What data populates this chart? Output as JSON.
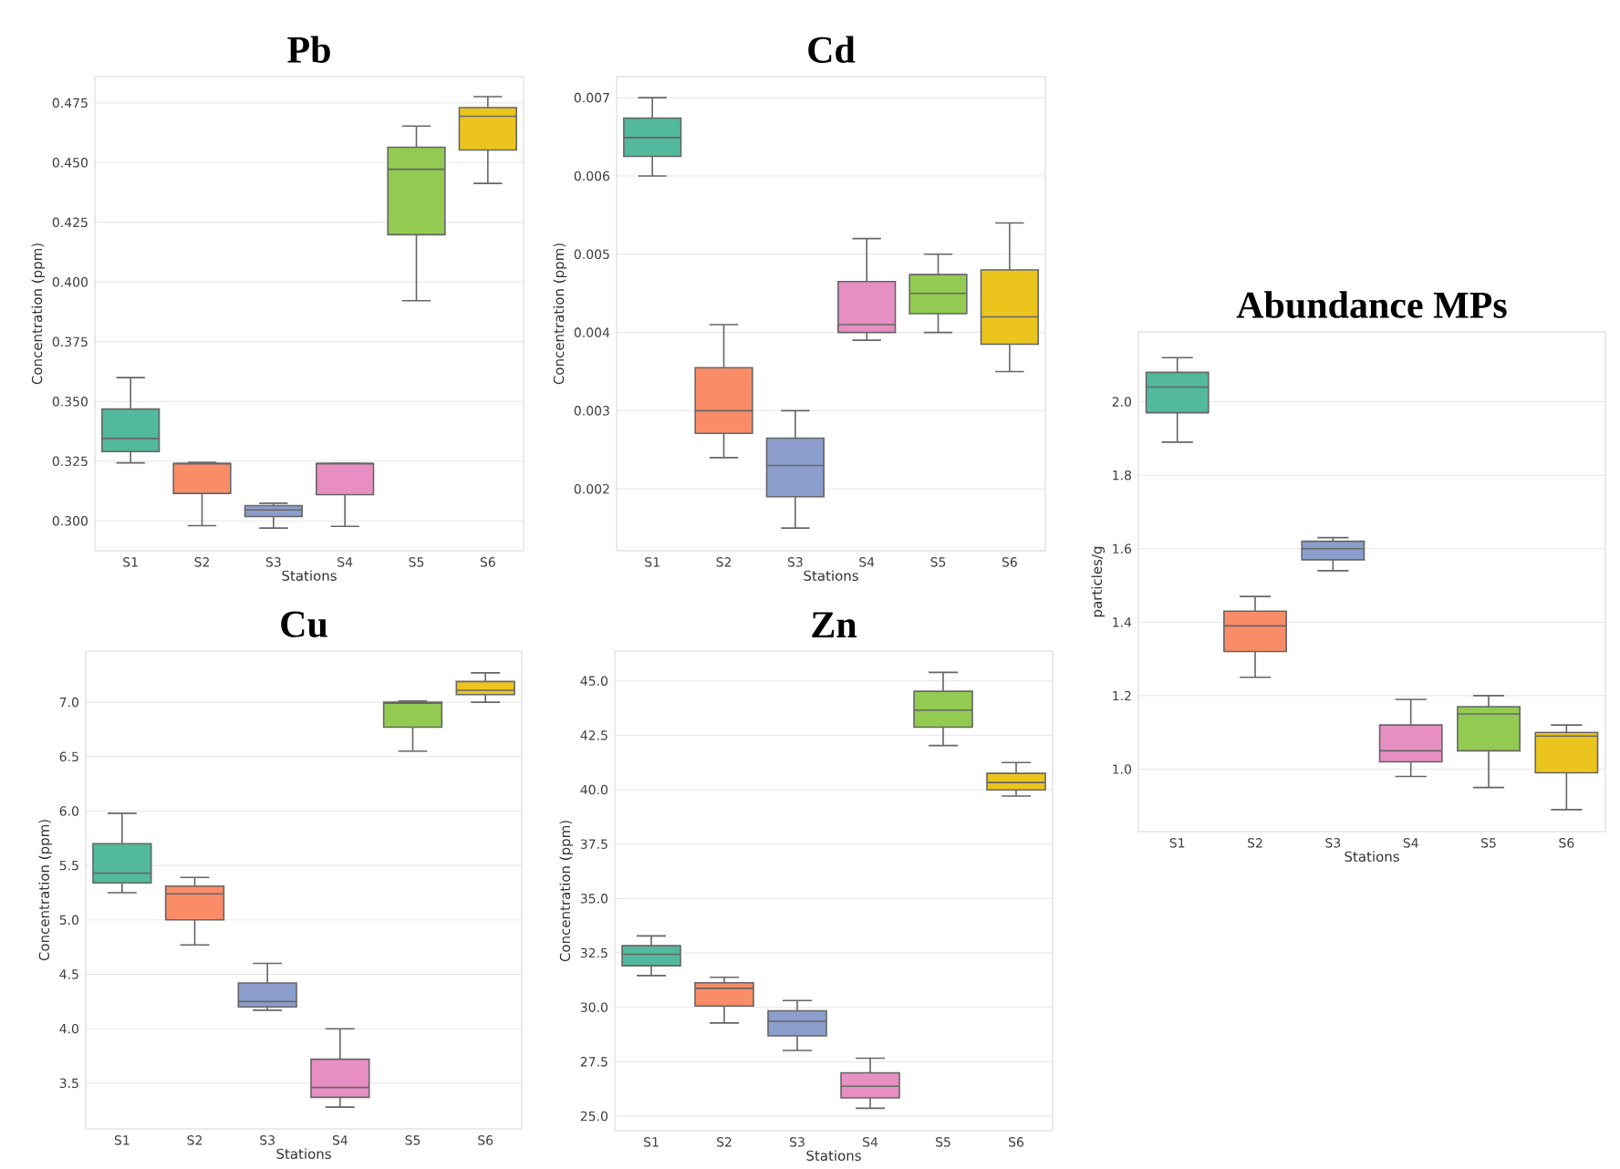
{
  "chart_data": [
    {
      "type": "box",
      "title": "Pb",
      "xlabel": "Stations",
      "ylabel": "Concentration (ppm)",
      "categories": [
        "S1",
        "S2",
        "S3",
        "S4",
        "S5",
        "S6"
      ],
      "colors": [
        "#52b99c",
        "#fa8c68",
        "#8c9ecb",
        "#e78fc3",
        "#93cb52",
        "#ecc41e"
      ],
      "ylim": [
        0.2875,
        0.486
      ],
      "yticks": [
        {
          "value": 0.3,
          "label": "0.300"
        },
        {
          "value": 0.325,
          "label": "0.325"
        },
        {
          "value": 0.35,
          "label": "0.350"
        },
        {
          "value": 0.375,
          "label": "0.375"
        },
        {
          "value": 0.4,
          "label": "0.400"
        },
        {
          "value": 0.425,
          "label": "0.425"
        },
        {
          "value": 0.45,
          "label": "0.450"
        },
        {
          "value": 0.475,
          "label": "0.475"
        }
      ],
      "grid": "y",
      "boxes": [
        {
          "low": 0.3243,
          "q1": 0.329,
          "median": 0.3345,
          "q3": 0.3468,
          "high": 0.36
        },
        {
          "low": 0.298,
          "q1": 0.3115,
          "median": 0.324,
          "q3": 0.324,
          "high": 0.3245
        },
        {
          "low": 0.297,
          "q1": 0.3018,
          "median": 0.3046,
          "q3": 0.3064,
          "high": 0.3074
        },
        {
          "low": 0.2977,
          "q1": 0.311,
          "median": 0.324,
          "q3": 0.324,
          "high": 0.324
        },
        {
          "low": 0.3922,
          "q1": 0.4198,
          "median": 0.4472,
          "q3": 0.4564,
          "high": 0.4653
        },
        {
          "low": 0.4413,
          "q1": 0.4553,
          "median": 0.4694,
          "q3": 0.473,
          "high": 0.4776
        }
      ]
    },
    {
      "type": "box",
      "title": "Cd",
      "xlabel": "Stations",
      "ylabel": "Concentration (ppm)",
      "categories": [
        "S1",
        "S2",
        "S3",
        "S4",
        "S5",
        "S6"
      ],
      "colors": [
        "#52b99c",
        "#fa8c68",
        "#8c9ecb",
        "#e78fc3",
        "#93cb52",
        "#ecc41e"
      ],
      "ylim": [
        0.00121,
        0.00727
      ],
      "yticks": [
        {
          "value": 0.002,
          "label": "0.002"
        },
        {
          "value": 0.003,
          "label": "0.003"
        },
        {
          "value": 0.004,
          "label": "0.004"
        },
        {
          "value": 0.005,
          "label": "0.005"
        },
        {
          "value": 0.006,
          "label": "0.006"
        },
        {
          "value": 0.007,
          "label": "0.007"
        }
      ],
      "grid": "y",
      "boxes": [
        {
          "low": 0.006,
          "q1": 0.00625,
          "median": 0.00649,
          "q3": 0.00674,
          "high": 0.007
        },
        {
          "low": 0.0024,
          "q1": 0.00271,
          "median": 0.003,
          "q3": 0.00355,
          "high": 0.0041
        },
        {
          "low": 0.0015,
          "q1": 0.0019,
          "median": 0.0023,
          "q3": 0.00265,
          "high": 0.003
        },
        {
          "low": 0.0039,
          "q1": 0.004,
          "median": 0.0041,
          "q3": 0.00465,
          "high": 0.0052
        },
        {
          "low": 0.004,
          "q1": 0.00424,
          "median": 0.0045,
          "q3": 0.00474,
          "high": 0.005
        },
        {
          "low": 0.0035,
          "q1": 0.00385,
          "median": 0.0042,
          "q3": 0.0048,
          "high": 0.0054
        }
      ]
    },
    {
      "type": "box",
      "title": "Abundance MPs",
      "xlabel": "Stations",
      "ylabel": "particles/g",
      "categories": [
        "S1",
        "S2",
        "S3",
        "S4",
        "S5",
        "S6"
      ],
      "colors": [
        "#52b99c",
        "#fa8c68",
        "#8c9ecb",
        "#e78fc3",
        "#93cb52",
        "#ecc41e"
      ],
      "ylim": [
        0.83,
        2.19
      ],
      "yticks": [
        {
          "value": 1.0,
          "label": "1.0"
        },
        {
          "value": 1.2,
          "label": "1.2"
        },
        {
          "value": 1.4,
          "label": "1.4"
        },
        {
          "value": 1.6,
          "label": "1.6"
        },
        {
          "value": 1.8,
          "label": "1.8"
        },
        {
          "value": 2.0,
          "label": "2.0"
        }
      ],
      "grid": "y",
      "boxes": [
        {
          "low": 1.89,
          "q1": 1.97,
          "median": 2.04,
          "q3": 2.08,
          "high": 2.12
        },
        {
          "low": 1.25,
          "q1": 1.32,
          "median": 1.39,
          "q3": 1.43,
          "high": 1.47
        },
        {
          "low": 1.54,
          "q1": 1.57,
          "median": 1.6,
          "q3": 1.62,
          "high": 1.63
        },
        {
          "low": 0.98,
          "q1": 1.02,
          "median": 1.05,
          "q3": 1.12,
          "high": 1.19
        },
        {
          "low": 0.95,
          "q1": 1.05,
          "median": 1.15,
          "q3": 1.17,
          "high": 1.2
        },
        {
          "low": 0.89,
          "q1": 0.99,
          "median": 1.09,
          "q3": 1.1,
          "high": 1.12
        }
      ]
    },
    {
      "type": "box",
      "title": "Cu",
      "xlabel": "Stations",
      "ylabel": "Concentration (ppm)",
      "categories": [
        "S1",
        "S2",
        "S3",
        "S4",
        "S5",
        "S6"
      ],
      "colors": [
        "#52b99c",
        "#fa8c68",
        "#8c9ecb",
        "#e78fc3",
        "#93cb52",
        "#ecc41e"
      ],
      "ylim": [
        3.08,
        7.47
      ],
      "yticks": [
        {
          "value": 3.5,
          "label": "3.5"
        },
        {
          "value": 4.0,
          "label": "4.0"
        },
        {
          "value": 4.5,
          "label": "4.5"
        },
        {
          "value": 5.0,
          "label": "5.0"
        },
        {
          "value": 5.5,
          "label": "5.5"
        },
        {
          "value": 6.0,
          "label": "6.0"
        },
        {
          "value": 6.5,
          "label": "6.5"
        },
        {
          "value": 7.0,
          "label": "7.0"
        }
      ],
      "grid": "y",
      "boxes": [
        {
          "low": 5.25,
          "q1": 5.34,
          "median": 5.43,
          "q3": 5.7,
          "high": 5.98
        },
        {
          "low": 4.77,
          "q1": 5.0,
          "median": 5.24,
          "q3": 5.31,
          "high": 5.39
        },
        {
          "low": 4.17,
          "q1": 4.2,
          "median": 4.25,
          "q3": 4.42,
          "high": 4.6
        },
        {
          "low": 3.28,
          "q1": 3.37,
          "median": 3.46,
          "q3": 3.72,
          "high": 4.0
        },
        {
          "low": 6.55,
          "q1": 6.77,
          "median": 6.99,
          "q3": 7.0,
          "high": 7.01
        },
        {
          "low": 7.0,
          "q1": 7.07,
          "median": 7.11,
          "q3": 7.19,
          "high": 7.27
        }
      ]
    },
    {
      "type": "box",
      "title": "Zn",
      "xlabel": "Stations",
      "ylabel": "Concentration (ppm)",
      "categories": [
        "S1",
        "S2",
        "S3",
        "S4",
        "S5",
        "S6"
      ],
      "colors": [
        "#52b99c",
        "#fa8c68",
        "#8c9ecb",
        "#e78fc3",
        "#93cb52",
        "#ecc41e"
      ],
      "ylim": [
        24.33,
        46.37
      ],
      "yticks": [
        {
          "value": 25.0,
          "label": "25.0"
        },
        {
          "value": 27.5,
          "label": "27.5"
        },
        {
          "value": 30.0,
          "label": "30.0"
        },
        {
          "value": 32.5,
          "label": "32.5"
        },
        {
          "value": 35.0,
          "label": "35.0"
        },
        {
          "value": 37.5,
          "label": "37.5"
        },
        {
          "value": 40.0,
          "label": "40.0"
        },
        {
          "value": 42.5,
          "label": "42.5"
        },
        {
          "value": 45.0,
          "label": "45.0"
        }
      ],
      "grid": "y",
      "boxes": [
        {
          "low": 31.46,
          "q1": 31.91,
          "median": 32.44,
          "q3": 32.83,
          "high": 33.28
        },
        {
          "low": 29.28,
          "q1": 30.06,
          "median": 30.87,
          "q3": 31.13,
          "high": 31.38
        },
        {
          "low": 28.02,
          "q1": 28.69,
          "median": 29.36,
          "q3": 29.84,
          "high": 30.31
        },
        {
          "low": 25.36,
          "q1": 25.84,
          "median": 26.37,
          "q3": 26.99,
          "high": 27.66
        },
        {
          "low": 42.03,
          "q1": 42.87,
          "median": 43.66,
          "q3": 44.52,
          "high": 45.39
        },
        {
          "low": 39.71,
          "q1": 39.99,
          "median": 40.33,
          "q3": 40.75,
          "high": 41.25
        }
      ]
    }
  ]
}
